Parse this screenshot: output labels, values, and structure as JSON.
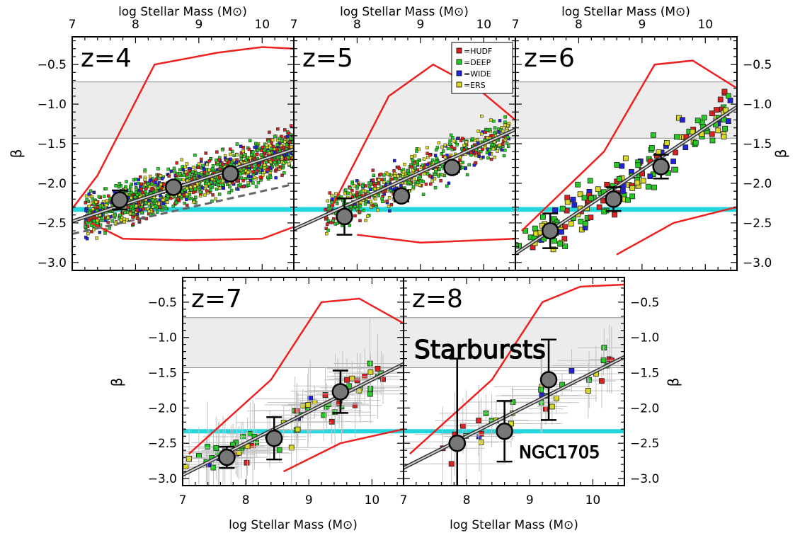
{
  "figure": {
    "x_label": "log Stellar Mass (M⊙)",
    "y_label": "β",
    "shaded_label": "Starbursts",
    "ref_label": "NGC1705",
    "legend": [
      {
        "label": "=HUDF",
        "color": "#e02020"
      },
      {
        "label": "=DEEP",
        "color": "#22cc22"
      },
      {
        "label": "=WIDE",
        "color": "#2222dd"
      },
      {
        "label": "=ERS",
        "color": "#d8d820"
      }
    ],
    "colors": {
      "envelope": "#ee2020",
      "fit_fill": "#8a8a8a",
      "reference_band": "#22d6dc",
      "starburst_band": "#ececec",
      "binned_marker": "#777777",
      "error_bars": "#c0c0c0"
    }
  },
  "chart_data": [
    {
      "type": "scatter",
      "title": "z=4",
      "xlabel": "log Stellar Mass (M⊙)",
      "ylabel": "β",
      "xlim": [
        7,
        10.5
      ],
      "ylim": [
        -3.1,
        -0.15
      ],
      "x_ticks": [
        7,
        8,
        9,
        10
      ],
      "y_ticks": [
        -3.0,
        -2.5,
        -2.0,
        -1.5,
        -1.0,
        -0.5
      ],
      "starburst_band": [
        -1.43,
        -0.72
      ],
      "reference_band": [
        -2.36,
        -2.3
      ],
      "binned_points": [
        {
          "x": 7.75,
          "y": -2.21,
          "err": 0.12
        },
        {
          "x": 8.6,
          "y": -2.05,
          "err": 0.06
        },
        {
          "x": 9.5,
          "y": -1.88,
          "err": 0.05
        }
      ],
      "fit": {
        "slope": 0.26,
        "intercept": -4.3
      },
      "fit_dashed": {
        "slope": 0.18,
        "intercept": -3.9
      },
      "envelope": [
        [
          7,
          -2.32
        ],
        [
          7.4,
          -1.9
        ],
        [
          8.3,
          -0.5
        ],
        [
          9.3,
          -0.35
        ],
        [
          10.0,
          -0.28
        ],
        [
          10.5,
          -0.3
        ]
      ],
      "envelope_low": [
        [
          7.3,
          -2.5
        ],
        [
          7.8,
          -2.7
        ],
        [
          8.8,
          -2.72
        ],
        [
          10.0,
          -2.7
        ],
        [
          10.5,
          -2.55
        ]
      ],
      "scatter_n": 1400,
      "scatter_size": "small",
      "scatter_region": {
        "x": [
          7.2,
          10.5
        ],
        "y": [
          -2.7,
          -0.45
        ]
      }
    },
    {
      "type": "scatter",
      "title": "z=5",
      "xlim": [
        7,
        10.5
      ],
      "ylim": [
        -3.1,
        -0.15
      ],
      "x_ticks": [
        7,
        8,
        9,
        10
      ],
      "y_ticks": [
        -3.0,
        -2.5,
        -2.0,
        -1.5,
        -1.0,
        -0.5
      ],
      "starburst_band": [
        -1.43,
        -0.72
      ],
      "reference_band": [
        -2.36,
        -2.3
      ],
      "binned_points": [
        {
          "x": 7.8,
          "y": -2.42,
          "err": 0.23
        },
        {
          "x": 8.7,
          "y": -2.16,
          "err": 0.07
        },
        {
          "x": 9.5,
          "y": -1.8,
          "err": 0.06
        }
      ],
      "fit": {
        "slope": 0.36,
        "intercept": -5.1
      },
      "envelope": [
        [
          7.6,
          -2.3
        ],
        [
          8.5,
          -0.9
        ],
        [
          9.2,
          -0.5
        ],
        [
          9.9,
          -0.8
        ],
        [
          10.5,
          -1.2
        ]
      ],
      "envelope_low": [
        [
          8.0,
          -2.65
        ],
        [
          9.0,
          -2.75
        ],
        [
          10.5,
          -2.7
        ]
      ],
      "scatter_n": 650,
      "scatter_size": "small",
      "scatter_region": {
        "x": [
          7.5,
          10.4
        ],
        "y": [
          -2.7,
          -0.8
        ]
      }
    },
    {
      "type": "scatter",
      "title": "z=6",
      "xlim": [
        7,
        10.5
      ],
      "ylim": [
        -3.1,
        -0.15
      ],
      "x_ticks": [
        7,
        8,
        9,
        10
      ],
      "y_ticks": [
        -3.0,
        -2.5,
        -2.0,
        -1.5,
        -1.0,
        -0.5
      ],
      "starburst_band": [
        -1.43,
        -0.72
      ],
      "reference_band": [
        -2.36,
        -2.3
      ],
      "binned_points": [
        {
          "x": 7.55,
          "y": -2.6,
          "err": 0.22
        },
        {
          "x": 8.55,
          "y": -2.2,
          "err": 0.15
        },
        {
          "x": 9.3,
          "y": -1.79,
          "err": 0.15
        }
      ],
      "fit": {
        "slope": 0.53,
        "intercept": -6.6
      },
      "envelope": [
        [
          7.1,
          -2.6
        ],
        [
          8.4,
          -1.6
        ],
        [
          9.2,
          -0.5
        ],
        [
          9.8,
          -0.45
        ],
        [
          10.5,
          -0.8
        ]
      ],
      "envelope_low": [
        [
          8.6,
          -2.9
        ],
        [
          9.5,
          -2.5
        ],
        [
          10.5,
          -2.3
        ]
      ],
      "scatter_n": 190,
      "scatter_size": "large",
      "scatter_region": {
        "x": [
          7.0,
          10.4
        ],
        "y": [
          -2.9,
          -0.65
        ]
      }
    },
    {
      "type": "scatter",
      "title": "z=7",
      "xlim": [
        7,
        10.5
      ],
      "ylim": [
        -3.1,
        -0.15
      ],
      "x_ticks": [
        7,
        8,
        9,
        10
      ],
      "y_ticks": [
        -3.0,
        -2.5,
        -2.0,
        -1.5,
        -1.0,
        -0.5
      ],
      "starburst_band": [
        -1.43,
        -0.72
      ],
      "reference_band": [
        -2.36,
        -2.3
      ],
      "binned_points": [
        {
          "x": 7.7,
          "y": -2.7,
          "err": 0.15
        },
        {
          "x": 8.45,
          "y": -2.43,
          "err": 0.3
        },
        {
          "x": 9.5,
          "y": -1.77,
          "err": 0.3
        }
      ],
      "fit": {
        "slope": 0.45,
        "intercept": -6.1
      },
      "envelope": [
        [
          7.1,
          -2.65
        ],
        [
          8.4,
          -1.6
        ],
        [
          9.2,
          -0.5
        ],
        [
          9.8,
          -0.45
        ],
        [
          10.5,
          -0.8
        ]
      ],
      "envelope_low": [
        [
          8.6,
          -2.9
        ],
        [
          9.5,
          -2.5
        ],
        [
          10.5,
          -2.3
        ]
      ],
      "scatter_n": 80,
      "scatter_size": "large",
      "scatter_region": {
        "x": [
          7.0,
          10.3
        ],
        "y": [
          -2.9,
          -0.65
        ]
      }
    },
    {
      "type": "scatter",
      "title": "z=8",
      "xlim": [
        7,
        10.5
      ],
      "ylim": [
        -3.1,
        -0.15
      ],
      "x_ticks": [
        7,
        8,
        9,
        10
      ],
      "y_ticks": [
        -3.0,
        -2.5,
        -2.0,
        -1.5,
        -1.0,
        -0.5
      ],
      "starburst_band": [
        -1.43,
        -0.72
      ],
      "reference_band": [
        -2.36,
        -2.3
      ],
      "binned_points": [
        {
          "x": 7.85,
          "y": -2.5,
          "err": 1.2
        },
        {
          "x": 8.6,
          "y": -2.33,
          "err": 0.43
        },
        {
          "x": 9.3,
          "y": -1.6,
          "err": 0.57
        }
      ],
      "fit": {
        "slope": 0.45,
        "intercept": -6.0
      },
      "envelope": [
        [
          7.1,
          -2.65
        ],
        [
          8.4,
          -1.6
        ],
        [
          9.2,
          -0.5
        ],
        [
          9.8,
          -0.28
        ],
        [
          10.5,
          -0.25
        ]
      ],
      "envelope_low": [],
      "scatter_n": 35,
      "scatter_size": "large",
      "scatter_region": {
        "x": [
          7.5,
          10.3
        ],
        "y": [
          -2.9,
          -0.7
        ]
      }
    }
  ]
}
